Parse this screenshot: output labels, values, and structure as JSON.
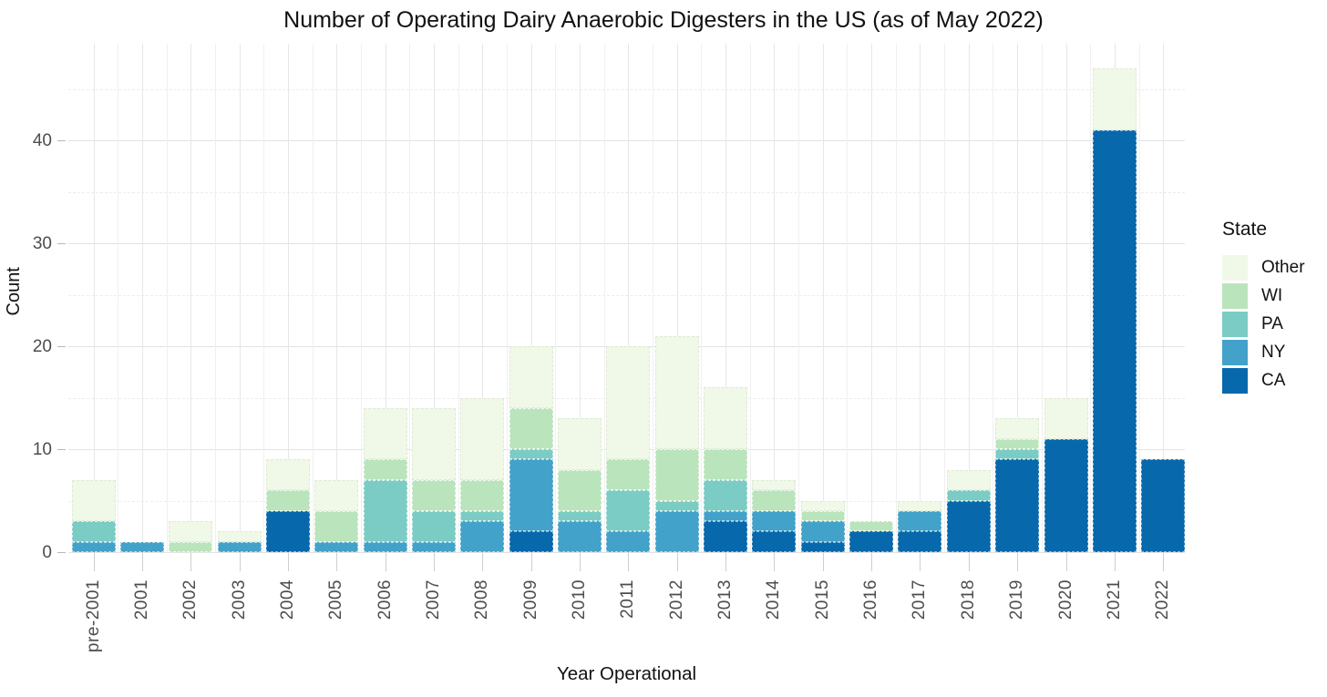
{
  "title": "Number of Operating Dairy Anaerobic Digesters in the US (as of May 2022)",
  "axes": {
    "x_label": "Year Operational",
    "y_label": "Count",
    "y_ticks": [
      0,
      10,
      20,
      30,
      40
    ],
    "y_minor_ticks": [
      5,
      15,
      25,
      35,
      45
    ]
  },
  "legend": {
    "title": "State",
    "items": [
      {
        "label": "Other",
        "color": "#f0f9e8"
      },
      {
        "label": "WI",
        "color": "#bae4bc"
      },
      {
        "label": "PA",
        "color": "#7bccc4"
      },
      {
        "label": "NY",
        "color": "#43a2ca"
      },
      {
        "label": "CA",
        "color": "#0868ac"
      }
    ]
  },
  "chart_data": {
    "type": "bar",
    "stacked": true,
    "title": "Number of Operating Dairy Anaerobic Digesters in the US (as of May 2022)",
    "xlabel": "Year Operational",
    "ylabel": "Count",
    "ylim": [
      0,
      47
    ],
    "grid": true,
    "legend_position": "right",
    "legend_order_top_to_bottom": [
      "Other",
      "WI",
      "PA",
      "NY",
      "CA"
    ],
    "categories": [
      "pre-2001",
      "2001",
      "2002",
      "2003",
      "2004",
      "2005",
      "2006",
      "2007",
      "2008",
      "2009",
      "2010",
      "2011",
      "2012",
      "2013",
      "2014",
      "2015",
      "2016",
      "2017",
      "2018",
      "2019",
      "2020",
      "2021",
      "2022"
    ],
    "series": [
      {
        "name": "CA",
        "color": "#0868ac",
        "border": "rgba(255,255,255,0.55)",
        "values": [
          0,
          0,
          0,
          0,
          4,
          0,
          0,
          0,
          0,
          2,
          0,
          0,
          0,
          3,
          2,
          1,
          2,
          2,
          5,
          9,
          11,
          41,
          9
        ]
      },
      {
        "name": "NY",
        "color": "#43a2ca",
        "border": "rgba(255,255,255,0.6)",
        "values": [
          1,
          1,
          0,
          1,
          0,
          1,
          1,
          1,
          3,
          7,
          3,
          2,
          4,
          1,
          2,
          2,
          0,
          2,
          0,
          0,
          0,
          0,
          0
        ]
      },
      {
        "name": "PA",
        "color": "#7bccc4",
        "border": "rgba(255,255,255,0.7)",
        "values": [
          2,
          0,
          0,
          0,
          0,
          0,
          6,
          3,
          1,
          1,
          1,
          4,
          1,
          3,
          0,
          0,
          0,
          0,
          1,
          1,
          0,
          0,
          0
        ]
      },
      {
        "name": "WI",
        "color": "#bae4bc",
        "border": "rgba(255,255,255,0.8)",
        "values": [
          0,
          0,
          1,
          0,
          2,
          3,
          2,
          3,
          3,
          4,
          4,
          3,
          5,
          3,
          2,
          1,
          1,
          0,
          0,
          1,
          0,
          0,
          0
        ]
      },
      {
        "name": "Other",
        "color": "#f0f9e8",
        "border": "#dfead6",
        "values": [
          4,
          0,
          2,
          1,
          3,
          3,
          5,
          7,
          8,
          6,
          5,
          11,
          11,
          6,
          1,
          1,
          0,
          1,
          2,
          2,
          4,
          6,
          0
        ]
      }
    ],
    "totals": [
      7,
      1,
      3,
      2,
      9,
      7,
      14,
      14,
      15,
      20,
      13,
      20,
      21,
      16,
      7,
      5,
      3,
      5,
      8,
      13,
      15,
      47,
      9
    ]
  }
}
